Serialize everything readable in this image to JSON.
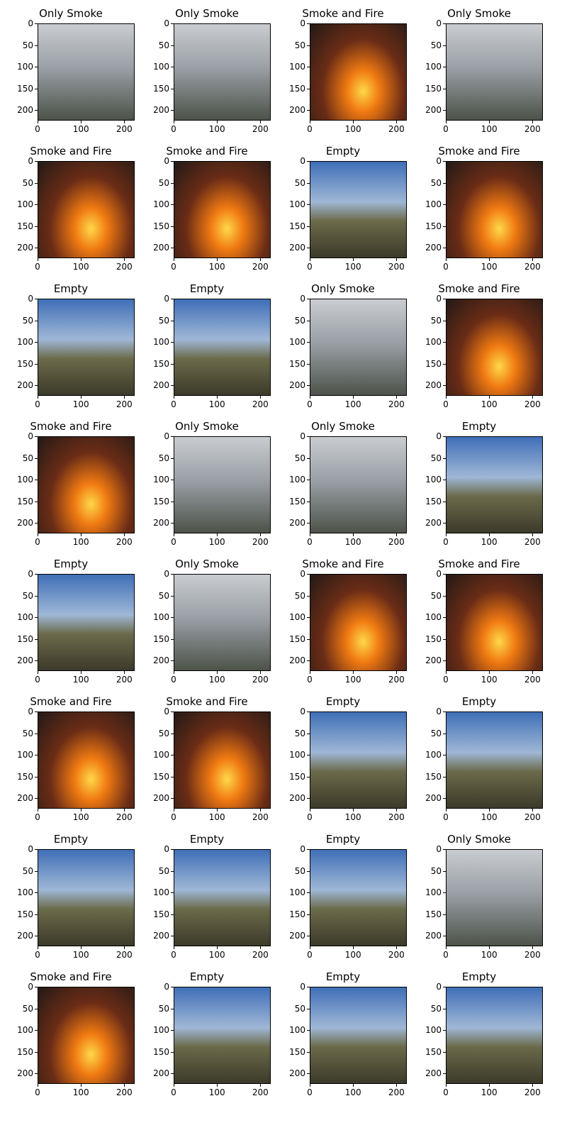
{
  "chart_data": {
    "type": "image_grid",
    "rows": 8,
    "cols": 4,
    "xlim": [
      0,
      224
    ],
    "ylim": [
      224,
      0
    ],
    "xticks": [
      "0",
      "100",
      "200"
    ],
    "yticks": [
      "0",
      "50",
      "100",
      "150",
      "200"
    ],
    "xtick_values": [
      0,
      100,
      200
    ],
    "ytick_values": [
      0,
      50,
      100,
      150,
      200
    ],
    "class_colors": {
      "Only Smoke": "#8a8f98",
      "Smoke and Fire": "#e25a12",
      "Empty": "#5d89c4"
    },
    "panels": [
      {
        "title": "Only Smoke"
      },
      {
        "title": "Only Smoke"
      },
      {
        "title": "Smoke and Fire"
      },
      {
        "title": "Only Smoke"
      },
      {
        "title": "Smoke and Fire"
      },
      {
        "title": "Smoke and Fire"
      },
      {
        "title": "Empty"
      },
      {
        "title": "Smoke and Fire"
      },
      {
        "title": "Empty"
      },
      {
        "title": "Empty"
      },
      {
        "title": "Only Smoke"
      },
      {
        "title": "Smoke and Fire"
      },
      {
        "title": "Smoke and Fire"
      },
      {
        "title": "Only Smoke"
      },
      {
        "title": "Only Smoke"
      },
      {
        "title": "Empty"
      },
      {
        "title": "Empty"
      },
      {
        "title": "Only Smoke"
      },
      {
        "title": "Smoke and Fire"
      },
      {
        "title": "Smoke and Fire"
      },
      {
        "title": "Smoke and Fire"
      },
      {
        "title": "Smoke and Fire"
      },
      {
        "title": "Empty"
      },
      {
        "title": "Empty"
      },
      {
        "title": "Empty"
      },
      {
        "title": "Empty"
      },
      {
        "title": "Empty"
      },
      {
        "title": "Only Smoke"
      },
      {
        "title": "Smoke and Fire"
      },
      {
        "title": "Empty"
      },
      {
        "title": "Empty"
      },
      {
        "title": "Empty"
      }
    ]
  }
}
